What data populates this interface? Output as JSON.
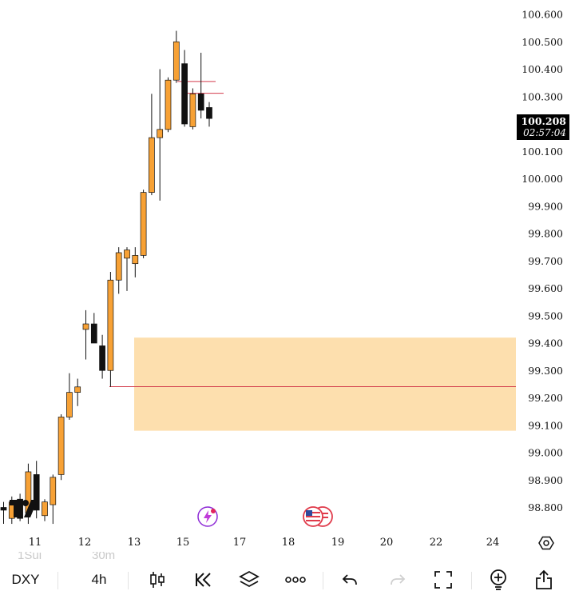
{
  "symbol": "DXY",
  "timeframe": "4h",
  "ghost_labels": [
    "1Sui",
    "30m"
  ],
  "price_axis": [
    "100.600",
    "100.500",
    "100.400",
    "100.300",
    "100.100",
    "100.000",
    "99.900",
    "99.800",
    "99.700",
    "99.600",
    "99.500",
    "99.400",
    "99.300",
    "99.200",
    "99.100",
    "99.000",
    "98.900",
    "98.800"
  ],
  "current_price": "100.208",
  "countdown": "02:57:04",
  "date_axis": [
    "11",
    "12",
    "13",
    "15",
    "17",
    "18",
    "19",
    "20",
    "22",
    "24"
  ],
  "colors": {
    "bull": "#F7A135",
    "bear": "#111111",
    "zone": "#FDDFAE",
    "level_line": "#D23B4B"
  },
  "icons": [
    "tradingview-logo-icon",
    "flash-event-icon",
    "us-flag-event-icon",
    "settings-hex-icon",
    "candles-icon",
    "replay-icon",
    "layers-icon",
    "more-icon",
    "undo-icon",
    "redo-icon",
    "fullscreen-icon",
    "idea-icon",
    "share-icon"
  ],
  "chart_data": {
    "type": "candlestick",
    "ylim": [
      98.75,
      100.63
    ],
    "levels": [
      99.241,
      100.312,
      100.355
    ],
    "zone": [
      99.08,
      99.42
    ],
    "candles": [
      {
        "o": 98.8,
        "h": 98.82,
        "l": 98.74,
        "c": 98.79
      },
      {
        "o": 98.76,
        "h": 98.84,
        "l": 98.74,
        "c": 98.82
      },
      {
        "o": 98.83,
        "h": 98.85,
        "l": 98.75,
        "c": 98.76
      },
      {
        "o": 98.78,
        "h": 98.96,
        "l": 98.74,
        "c": 98.93
      },
      {
        "o": 98.92,
        "h": 98.97,
        "l": 98.76,
        "c": 98.79
      },
      {
        "o": 98.77,
        "h": 98.83,
        "l": 98.75,
        "c": 98.82
      },
      {
        "o": 98.81,
        "h": 98.92,
        "l": 98.74,
        "c": 98.91
      },
      {
        "o": 98.92,
        "h": 99.14,
        "l": 98.9,
        "c": 99.13
      },
      {
        "o": 99.13,
        "h": 99.29,
        "l": 99.12,
        "c": 99.22
      },
      {
        "o": 99.22,
        "h": 99.27,
        "l": 99.17,
        "c": 99.24
      },
      {
        "o": 99.45,
        "h": 99.52,
        "l": 99.34,
        "c": 99.47
      },
      {
        "o": 99.47,
        "h": 99.51,
        "l": 99.4,
        "c": 99.4
      },
      {
        "o": 99.39,
        "h": 99.43,
        "l": 99.27,
        "c": 99.3
      },
      {
        "o": 99.3,
        "h": 99.66,
        "l": 99.24,
        "c": 99.63
      },
      {
        "o": 99.63,
        "h": 99.75,
        "l": 99.58,
        "c": 99.73
      },
      {
        "o": 99.71,
        "h": 99.75,
        "l": 99.59,
        "c": 99.74
      },
      {
        "o": 99.69,
        "h": 99.75,
        "l": 99.64,
        "c": 99.72
      },
      {
        "o": 99.72,
        "h": 99.96,
        "l": 99.71,
        "c": 99.95
      },
      {
        "o": 99.95,
        "h": 100.31,
        "l": 99.94,
        "c": 100.15
      },
      {
        "o": 100.15,
        "h": 100.4,
        "l": 99.92,
        "c": 100.18
      },
      {
        "o": 100.18,
        "h": 100.37,
        "l": 100.17,
        "c": 100.36
      },
      {
        "o": 100.36,
        "h": 100.54,
        "l": 100.35,
        "c": 100.5
      },
      {
        "o": 100.42,
        "h": 100.47,
        "l": 100.19,
        "c": 100.2
      },
      {
        "o": 100.19,
        "h": 100.33,
        "l": 100.18,
        "c": 100.31
      },
      {
        "o": 100.31,
        "h": 100.46,
        "l": 100.22,
        "c": 100.25
      },
      {
        "o": 100.26,
        "h": 100.28,
        "l": 100.19,
        "c": 100.22
      }
    ]
  }
}
